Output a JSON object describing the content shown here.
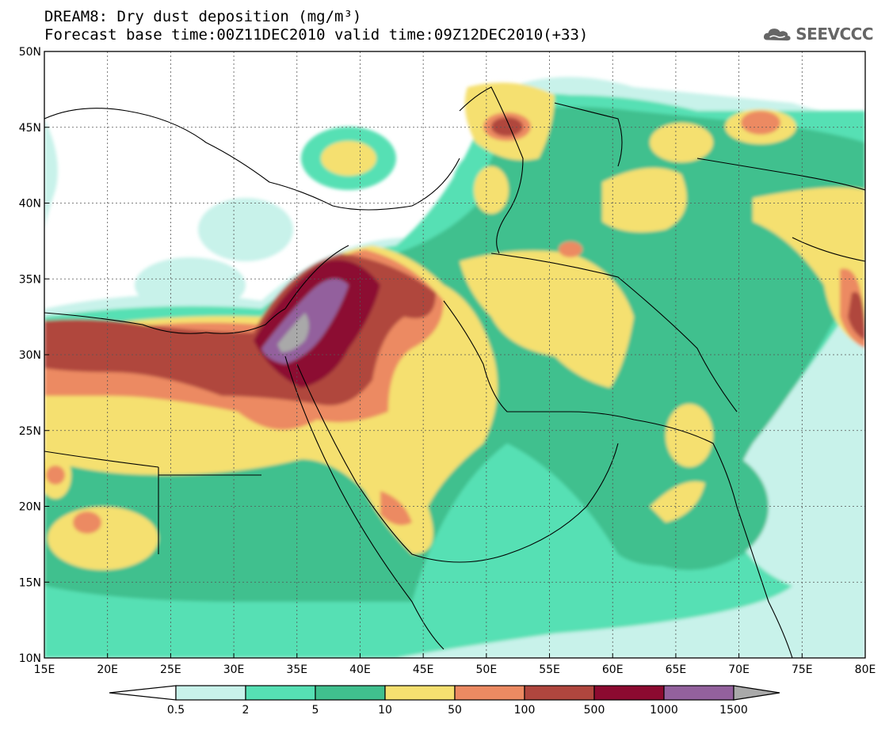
{
  "header": {
    "title_line1": "DREAM8: Dry dust deposition (mg/m³)",
    "title_line2": "Forecast base time:00Z11DEC2010 valid time:09Z12DEC2010(+33)"
  },
  "logo": {
    "icon": "cloud-icon",
    "text": "SEEVCCC"
  },
  "map": {
    "lon_range": [
      15,
      80
    ],
    "lat_range": [
      10,
      50
    ],
    "lon_ticks": [
      "15E",
      "20E",
      "25E",
      "30E",
      "35E",
      "40E",
      "45E",
      "50E",
      "55E",
      "60E",
      "65E",
      "70E",
      "75E",
      "80E"
    ],
    "lat_ticks": [
      "10N",
      "15N",
      "20N",
      "25N",
      "30N",
      "35N",
      "40N",
      "45N",
      "50N"
    ],
    "gridlines": true
  },
  "colorbar": {
    "levels": [
      "0.5",
      "2",
      "5",
      "10",
      "50",
      "100",
      "500",
      "1000",
      "1500"
    ],
    "colors": [
      "#ffffff",
      "#c8f2ea",
      "#56e0b4",
      "#40c08e",
      "#f5e070",
      "#ec8a62",
      "#b0463e",
      "#8c0a30",
      "#93619d",
      "#a9a9a9"
    ]
  }
}
